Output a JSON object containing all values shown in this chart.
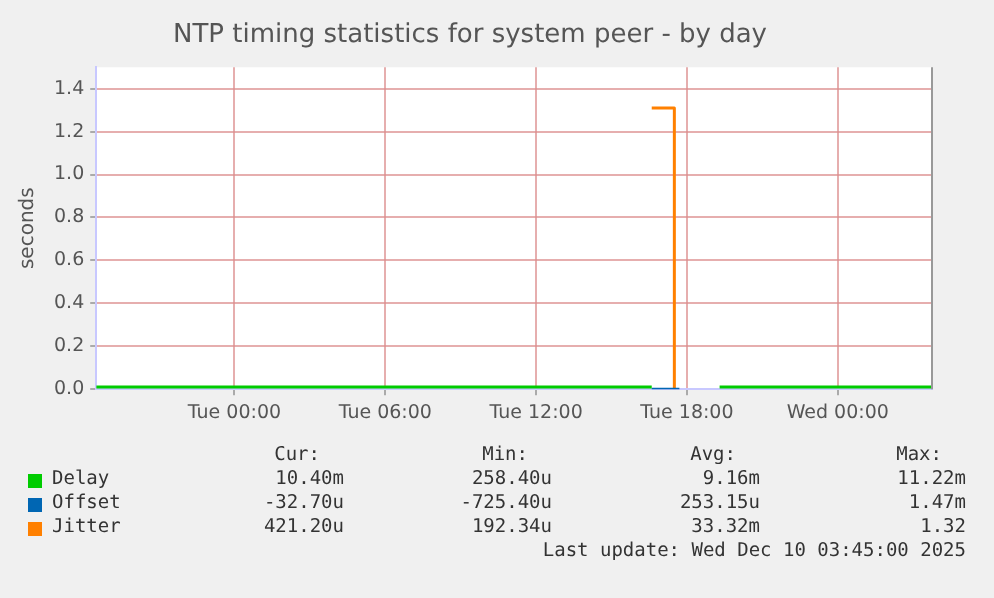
{
  "chart_data": {
    "type": "step",
    "title": "NTP timing statistics for system peer - by day",
    "ylabel": "seconds",
    "xlim": [
      "2025-12-08T18:30",
      "2025-12-10T03:45"
    ],
    "xticks": [
      {
        "value": "2025-12-09T00:00",
        "label": "Tue 00:00"
      },
      {
        "value": "2025-12-09T06:00",
        "label": "Tue 06:00"
      },
      {
        "value": "2025-12-09T12:00",
        "label": "Tue 12:00"
      },
      {
        "value": "2025-12-09T18:00",
        "label": "Tue 18:00"
      },
      {
        "value": "2025-12-10T00:00",
        "label": "Wed 00:00"
      }
    ],
    "ylim": [
      0,
      1.5
    ],
    "yticks": [
      {
        "value": 0,
        "label": "0.0"
      },
      0.2,
      0.4,
      0.6,
      0.8,
      {
        "value": 1,
        "label": "1.0"
      },
      1.2,
      1.4
    ],
    "grid": true,
    "legend": "bottom",
    "marker": "none",
    "line_style": "solid",
    "series": [
      {
        "name": "Delay",
        "color": "#00cc00",
        "x": [
          "2025-12-08T18:30",
          "2025-12-09T16:36",
          "2025-12-09T16:42",
          "2025-12-09T19:18",
          "2025-12-10T03:45"
        ],
        "values": [
          0.01,
          0.01,
          null,
          0.01,
          0.01
        ]
      },
      {
        "name": "Offset",
        "color": "#0066b3",
        "x": [
          "2025-12-09T16:36",
          "2025-12-09T17:42"
        ],
        "values": [
          0,
          0
        ]
      },
      {
        "name": "Jitter",
        "color": "#ff8000",
        "x": [
          "2025-12-09T16:36",
          "2025-12-09T17:30"
        ],
        "values": [
          1.31,
          0
        ]
      }
    ],
    "annotations": [
      "Cur:",
      "Min:",
      "Avg:",
      "Max:",
      "10.40m",
      "258.40u",
      "9.16m",
      "11.22m",
      "-32.70u",
      "-725.40u",
      "253.15u",
      "1.47m",
      "421.20u",
      "192.34u",
      "33.32m",
      "1.32",
      "Last update: Wed Dec 10 03:45:00 2025"
    ]
  }
}
